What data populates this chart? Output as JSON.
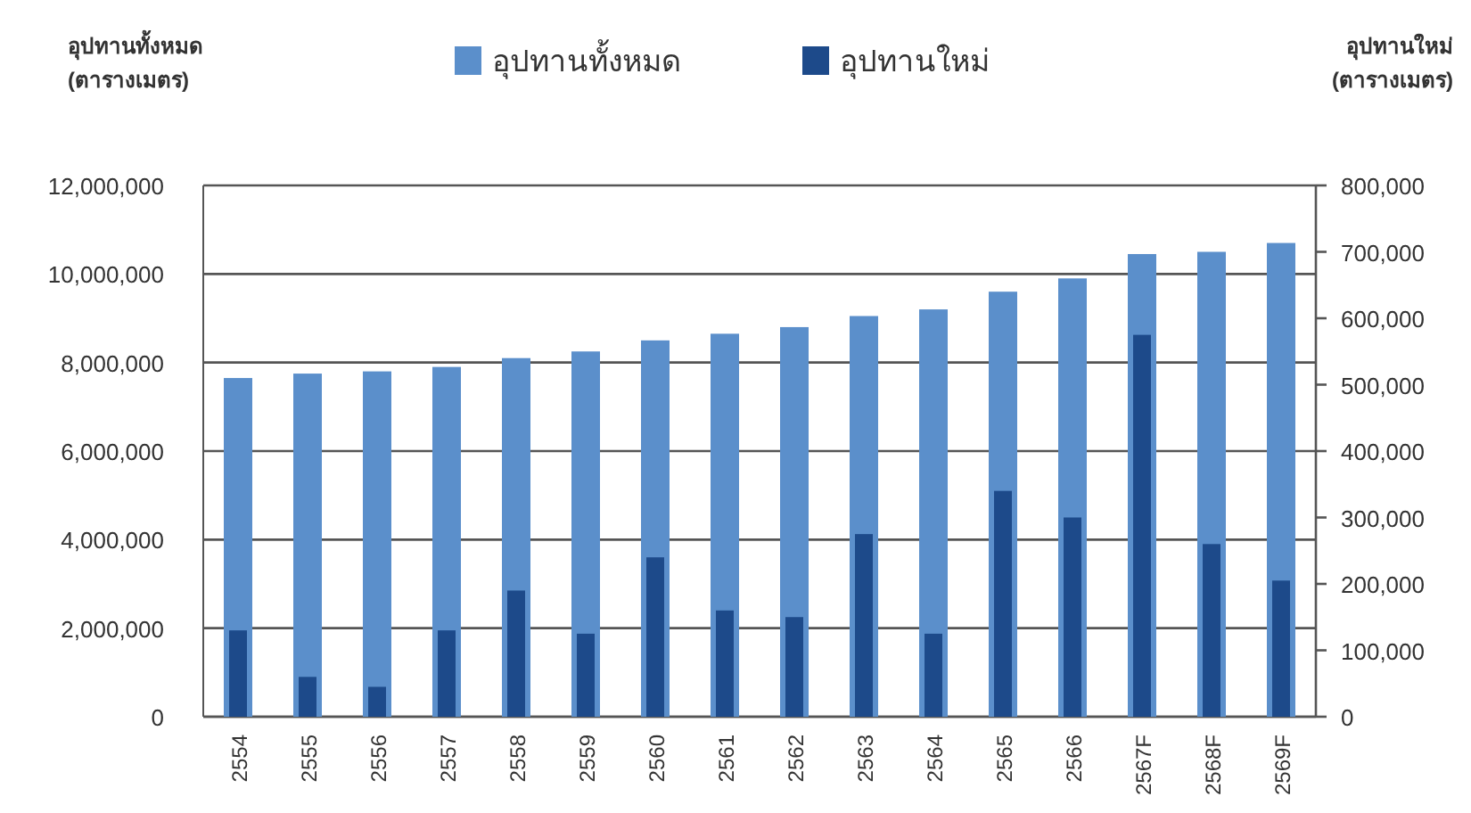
{
  "chart_data": {
    "type": "bar",
    "ylabel": "อุปทานทั้งหมด\n(ตารางเมตร)",
    "y2label": "อุปทานใหม่\n(ตารางเมตร)",
    "categories": [
      "2554",
      "2555",
      "2556",
      "2557",
      "2558",
      "2559",
      "2560",
      "2561",
      "2562",
      "2563",
      "2564",
      "2565",
      "2566",
      "2567F",
      "2568F",
      "2569F"
    ],
    "series": [
      {
        "name": "อุปทานทั้งหมด",
        "color": "#5b8fcb",
        "values": [
          7650000,
          7750000,
          7800000,
          7900000,
          8100000,
          8250000,
          8500000,
          8650000,
          8800000,
          9050000,
          9200000,
          9600000,
          9900000,
          10450000,
          10500000,
          10700000
        ]
      },
      {
        "name": "อุปทานใหม่",
        "color": "#1d4a8a",
        "axis": "y2",
        "values": [
          130000,
          60000,
          45000,
          130000,
          190000,
          125000,
          240000,
          160000,
          150000,
          275000,
          125000,
          340000,
          300000,
          575000,
          260000,
          205000
        ]
      }
    ],
    "ylim": [
      0,
      12000000
    ],
    "yticks": [
      0,
      {
        "value": 2000000,
        "label": "2,000,000"
      },
      {
        "value": 4000000,
        "label": "4,000,000"
      },
      {
        "value": 6000000,
        "label": "6,000,000"
      },
      {
        "value": 8000000,
        "label": "8,000,000"
      },
      {
        "value": 10000000,
        "label": "10,000,000"
      },
      {
        "value": 12000000,
        "label": "12,000,000"
      }
    ],
    "y2lim": [
      0,
      800000
    ],
    "y2ticks": [
      0,
      {
        "value": 100000,
        "label": "100,000"
      },
      {
        "value": 200000,
        "label": "200,000"
      },
      {
        "value": 300000,
        "label": "300,000"
      },
      {
        "value": 400000,
        "label": "400,000"
      },
      {
        "value": 500000,
        "label": "500,000"
      },
      {
        "value": 600000,
        "label": "600,000"
      },
      {
        "value": 700000,
        "label": "700,000"
      },
      {
        "value": 800000,
        "label": "800,000"
      }
    ],
    "grid": "y",
    "legend": "top"
  }
}
